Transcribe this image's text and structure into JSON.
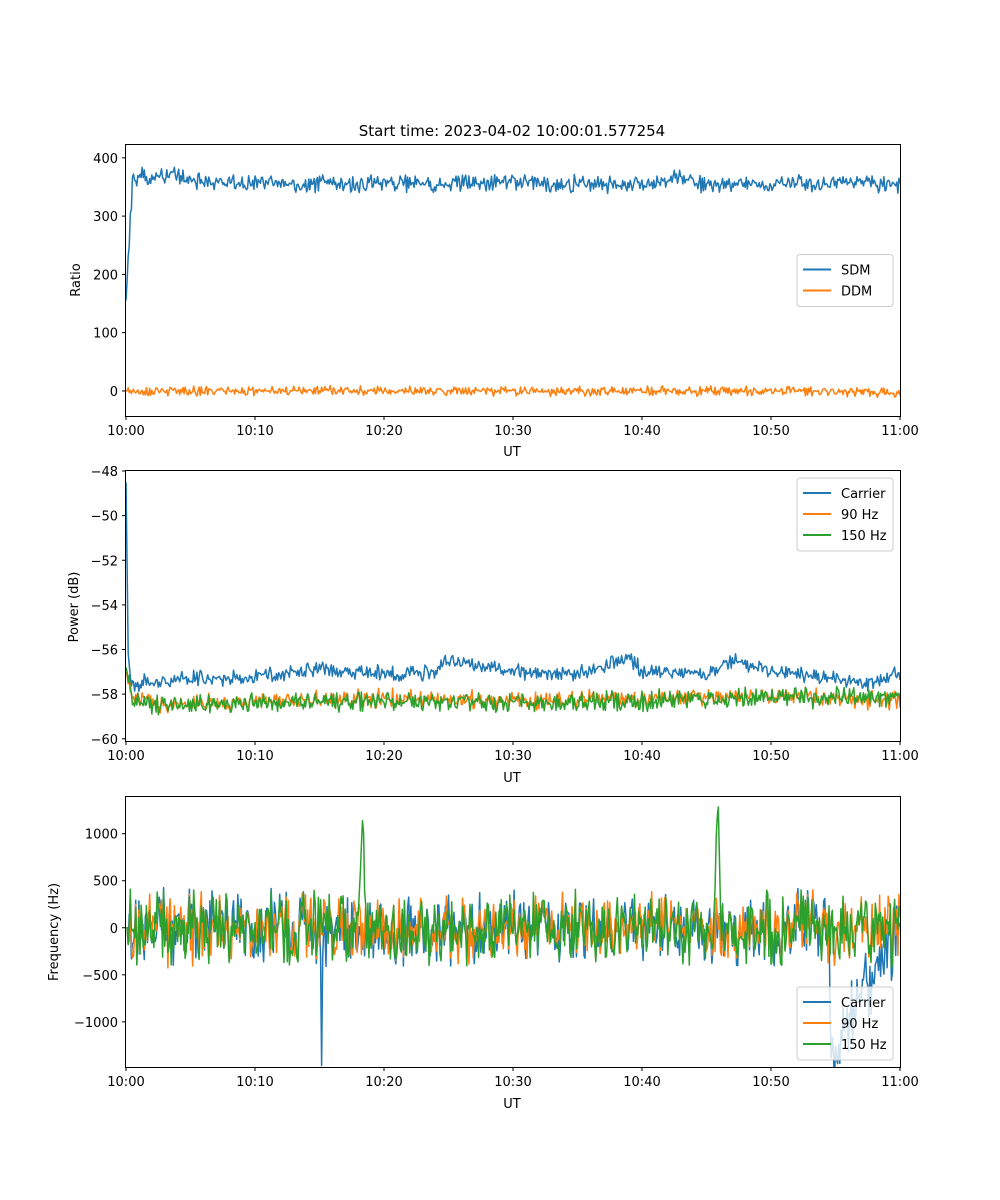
{
  "chart_data": [
    {
      "type": "line",
      "title": "Start time: 2023-04-02 10:00:01.577254",
      "xlabel": "UT",
      "ylabel": "Ratio",
      "xlim": [
        "10:00",
        "11:00"
      ],
      "ylim": [
        -43,
        422
      ],
      "xticks": [
        "10:00",
        "10:10",
        "10:20",
        "10:30",
        "10:40",
        "10:50",
        "11:00"
      ],
      "yticks": [
        0,
        100,
        200,
        300,
        400
      ],
      "ytick_labels": [
        "0",
        "100",
        "200",
        "300",
        "400"
      ],
      "legend_loc": "center-right",
      "grid": false,
      "series": [
        {
          "name": "SDM",
          "color": "#1f77b4",
          "x": [
            "10:00",
            "10:00:30",
            "10:01",
            "10:02",
            "10:03",
            "10:04",
            "10:05",
            "10:06",
            "10:08",
            "10:10",
            "10:12",
            "10:14",
            "10:16",
            "10:18",
            "10:20",
            "10:22",
            "10:24",
            "10:26",
            "10:28",
            "10:30",
            "10:32",
            "10:34",
            "10:36",
            "10:38",
            "10:40",
            "10:42",
            "10:43",
            "10:44",
            "10:46",
            "10:48",
            "10:50",
            "10:52",
            "10:54",
            "10:56",
            "10:58",
            "11:00"
          ],
          "values": [
            155,
            360,
            370,
            365,
            372,
            368,
            362,
            360,
            358,
            355,
            357,
            352,
            358,
            354,
            360,
            356,
            352,
            358,
            355,
            360,
            356,
            354,
            358,
            352,
            355,
            360,
            370,
            356,
            352,
            357,
            353,
            358,
            355,
            360,
            356,
            352
          ],
          "noise": 14
        },
        {
          "name": "DDM",
          "color": "#ff7f0e",
          "x": [
            "10:00",
            "10:10",
            "10:20",
            "10:30",
            "10:40",
            "10:50",
            "11:00"
          ],
          "values": [
            0,
            0,
            0,
            0,
            0,
            0,
            -3
          ],
          "noise": 8
        }
      ]
    },
    {
      "type": "line",
      "title": "",
      "xlabel": "UT",
      "ylabel": "Power (dB)",
      "xlim": [
        "10:00",
        "11:00"
      ],
      "ylim": [
        -60.1,
        -48
      ],
      "xticks": [
        "10:00",
        "10:10",
        "10:20",
        "10:30",
        "10:40",
        "10:50",
        "11:00"
      ],
      "yticks": [
        -60,
        -58,
        -56,
        -54,
        -52,
        -50,
        -48
      ],
      "ytick_labels": [
        "−60",
        "−58",
        "−56",
        "−54",
        "−52",
        "−50",
        "−48"
      ],
      "legend_loc": "upper-right",
      "grid": false,
      "series": [
        {
          "name": "Carrier",
          "color": "#1f77b4",
          "x": [
            "10:00",
            "10:00:10",
            "10:00:20",
            "10:00:40",
            "10:02",
            "10:05",
            "10:10",
            "10:15",
            "10:20",
            "10:24",
            "10:25",
            "10:30",
            "10:35",
            "10:39",
            "10:40",
            "10:45",
            "10:47",
            "10:50",
            "10:55",
            "10:58",
            "11:00"
          ],
          "values": [
            -48.5,
            -56.0,
            -57.2,
            -57.6,
            -57.4,
            -57.3,
            -57.2,
            -56.9,
            -57.1,
            -57.0,
            -56.5,
            -57.0,
            -57.1,
            -56.4,
            -57.0,
            -57.1,
            -56.5,
            -57.0,
            -57.3,
            -57.5,
            -57.0
          ],
          "noise": 0.35
        },
        {
          "name": "90 Hz",
          "color": "#ff7f0e",
          "x": [
            "10:00",
            "10:00:30",
            "10:02",
            "10:10",
            "10:20",
            "10:30",
            "10:40",
            "10:50",
            "11:00"
          ],
          "values": [
            -57.0,
            -58.0,
            -58.4,
            -58.3,
            -58.2,
            -58.3,
            -58.2,
            -58.1,
            -58.3
          ],
          "noise": 0.4
        },
        {
          "name": "150 Hz",
          "color": "#2ca02c",
          "x": [
            "10:00",
            "10:00:30",
            "10:02",
            "10:10",
            "10:20",
            "10:30",
            "10:40",
            "10:50",
            "11:00"
          ],
          "values": [
            -56.8,
            -58.1,
            -58.5,
            -58.4,
            -58.3,
            -58.4,
            -58.3,
            -58.2,
            -58.1
          ],
          "noise": 0.45
        }
      ]
    },
    {
      "type": "line",
      "title": "",
      "xlabel": "UT",
      "ylabel": "Frequency (Hz)",
      "xlim": [
        "10:00",
        "11:00"
      ],
      "ylim": [
        -1480,
        1390
      ],
      "xticks": [
        "10:00",
        "10:10",
        "10:20",
        "10:30",
        "10:40",
        "10:50",
        "11:00"
      ],
      "yticks": [
        -1000,
        -500,
        0,
        500,
        1000
      ],
      "ytick_labels": [
        "−1000",
        "−500",
        "0",
        "500",
        "1000"
      ],
      "legend_loc": "lower-right",
      "grid": false,
      "series": [
        {
          "name": "Carrier",
          "color": "#1f77b4",
          "x": [
            "10:00",
            "10:15",
            "10:15:10",
            "10:15:20",
            "10:30",
            "10:54:30",
            "10:54:40",
            "11:00"
          ],
          "values": [
            0,
            0,
            -1280,
            0,
            0,
            0,
            -1330,
            0
          ],
          "noise": 360
        },
        {
          "name": "90 Hz",
          "color": "#ff7f0e",
          "x": [
            "10:00",
            "10:30",
            "11:00"
          ],
          "values": [
            0,
            0,
            0
          ],
          "noise": 360
        },
        {
          "name": "150 Hz",
          "color": "#2ca02c",
          "x": [
            "10:00",
            "10:18",
            "10:18:20",
            "10:18:40",
            "10:45:30",
            "10:45:50",
            "10:46:10",
            "11:00"
          ],
          "values": [
            0,
            0,
            1250,
            0,
            0,
            1250,
            0,
            0
          ],
          "noise": 380
        }
      ]
    }
  ]
}
